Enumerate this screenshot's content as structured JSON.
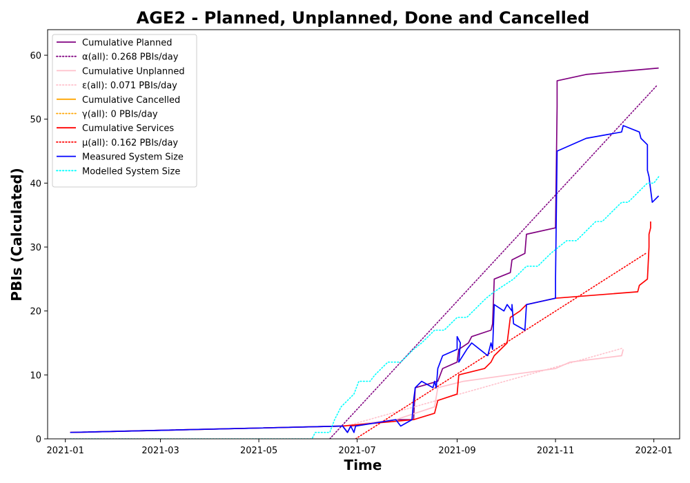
{
  "chart_data": {
    "type": "line",
    "title": "AGE2 - Planned, Unplanned, Done  and Cancelled",
    "xlabel": "Time",
    "ylabel": "PBIs (Calculated)",
    "x_type": "date",
    "xlim": [
      "2020-12-21",
      "2022-01-17"
    ],
    "ylim": [
      0,
      64
    ],
    "x_ticks": [
      "2021-01",
      "2021-03",
      "2021-05",
      "2021-07",
      "2021-09",
      "2021-11",
      "2022-01"
    ],
    "y_ticks": [
      0,
      10,
      20,
      30,
      40,
      50,
      60
    ],
    "grid": false,
    "legend_position": "top-left",
    "colors": {
      "planned": "#800080",
      "unplanned": "#ffc0cb",
      "cancelled": "#ffa500",
      "services": "#ff0000",
      "measured": "#0000ff",
      "modelled": "#00ffff"
    },
    "series": [
      {
        "name": "Cumulative Planned",
        "color": "#800080",
        "style": "solid",
        "points": [
          [
            "2021-01-04",
            1
          ],
          [
            "2021-06-22",
            2
          ],
          [
            "2021-06-25",
            1
          ],
          [
            "2021-06-27",
            2
          ],
          [
            "2021-07-25",
            3
          ],
          [
            "2021-08-05",
            3
          ],
          [
            "2021-08-06",
            8
          ],
          [
            "2021-08-20",
            9
          ],
          [
            "2021-08-23",
            11
          ],
          [
            "2021-09-01",
            12
          ],
          [
            "2021-09-02",
            14
          ],
          [
            "2021-09-08",
            15
          ],
          [
            "2021-09-10",
            16
          ],
          [
            "2021-09-22",
            17
          ],
          [
            "2021-09-23",
            18
          ],
          [
            "2021-09-24",
            25
          ],
          [
            "2021-10-04",
            26
          ],
          [
            "2021-10-05",
            28
          ],
          [
            "2021-10-13",
            29
          ],
          [
            "2021-10-14",
            32
          ],
          [
            "2021-11-01",
            33
          ],
          [
            "2021-11-02",
            52
          ],
          [
            "2021-11-02",
            56
          ],
          [
            "2021-11-20",
            57
          ],
          [
            "2022-01-04",
            58
          ]
        ]
      },
      {
        "name": "α(all): 0.268 PBIs/day",
        "color": "#800080",
        "style": "dotted",
        "points": [
          [
            "2021-06-14",
            0
          ],
          [
            "2022-01-03",
            55.3
          ]
        ]
      },
      {
        "name": "Cumulative Unplanned",
        "color": "#ffc0cb",
        "style": "solid",
        "points": [
          [
            "2021-01-04",
            1
          ],
          [
            "2021-06-22",
            2
          ],
          [
            "2021-07-25",
            3
          ],
          [
            "2021-08-18",
            5
          ],
          [
            "2021-08-20",
            8
          ],
          [
            "2021-09-05",
            9
          ],
          [
            "2021-11-01",
            11
          ],
          [
            "2021-11-10",
            12
          ],
          [
            "2021-12-12",
            13
          ],
          [
            "2021-12-13",
            14
          ]
        ]
      },
      {
        "name": "ε(all): 0.071 PBIs/day",
        "color": "#ffc0cb",
        "style": "dotted",
        "points": [
          [
            "2021-06-24",
            2
          ],
          [
            "2021-12-13",
            14.2
          ]
        ]
      },
      {
        "name": "Cumulative Cancelled",
        "color": "#ffa500",
        "style": "solid",
        "points": []
      },
      {
        "name": "γ(all): 0 PBIs/day",
        "color": "#ffa500",
        "style": "dotted",
        "points": []
      },
      {
        "name": "Cumulative Services",
        "color": "#ff0000",
        "style": "solid",
        "points": [
          [
            "2021-01-04",
            1
          ],
          [
            "2021-06-22",
            2
          ],
          [
            "2021-08-05",
            3
          ],
          [
            "2021-08-18",
            4
          ],
          [
            "2021-08-20",
            6
          ],
          [
            "2021-09-01",
            7
          ],
          [
            "2021-09-02",
            10
          ],
          [
            "2021-09-18",
            11
          ],
          [
            "2021-09-22",
            12
          ],
          [
            "2021-09-24",
            13
          ],
          [
            "2021-10-02",
            15
          ],
          [
            "2021-10-04",
            19
          ],
          [
            "2021-10-10",
            20
          ],
          [
            "2021-10-14",
            21
          ],
          [
            "2021-11-01",
            22
          ],
          [
            "2021-12-22",
            23
          ],
          [
            "2021-12-23",
            24
          ],
          [
            "2021-12-28",
            25
          ],
          [
            "2021-12-29",
            30
          ],
          [
            "2021-12-29",
            32
          ],
          [
            "2021-12-30",
            33
          ],
          [
            "2021-12-30",
            34
          ]
        ]
      },
      {
        "name": "μ(all): 0.162 PBIs/day",
        "color": "#ff0000",
        "style": "dotted",
        "points": [
          [
            "2021-06-30",
            0
          ],
          [
            "2021-12-27",
            29
          ]
        ]
      },
      {
        "name": "Measured System Size",
        "color": "#0000ff",
        "style": "solid",
        "points": [
          [
            "2021-01-04",
            1
          ],
          [
            "2021-06-22",
            2
          ],
          [
            "2021-06-25",
            1
          ],
          [
            "2021-06-27",
            2
          ],
          [
            "2021-06-29",
            1
          ],
          [
            "2021-06-30",
            2
          ],
          [
            "2021-07-25",
            3
          ],
          [
            "2021-07-28",
            2
          ],
          [
            "2021-08-04",
            3
          ],
          [
            "2021-08-05",
            6
          ],
          [
            "2021-08-06",
            8
          ],
          [
            "2021-08-10",
            9
          ],
          [
            "2021-08-17",
            8
          ],
          [
            "2021-08-18",
            9
          ],
          [
            "2021-08-19",
            8
          ],
          [
            "2021-08-20",
            11
          ],
          [
            "2021-08-23",
            13
          ],
          [
            "2021-09-01",
            14
          ],
          [
            "2021-09-01",
            16
          ],
          [
            "2021-09-03",
            15
          ],
          [
            "2021-09-02",
            12
          ],
          [
            "2021-09-07",
            14
          ],
          [
            "2021-09-10",
            15
          ],
          [
            "2021-09-20",
            13
          ],
          [
            "2021-09-22",
            15
          ],
          [
            "2021-09-23",
            14
          ],
          [
            "2021-09-24",
            21
          ],
          [
            "2021-09-30",
            20
          ],
          [
            "2021-10-02",
            21
          ],
          [
            "2021-10-05",
            20
          ],
          [
            "2021-10-05",
            21
          ],
          [
            "2021-10-06",
            18
          ],
          [
            "2021-10-13",
            17
          ],
          [
            "2021-10-14",
            21
          ],
          [
            "2021-11-01",
            22
          ],
          [
            "2021-11-01",
            25
          ],
          [
            "2021-11-02",
            45
          ],
          [
            "2021-11-20",
            47
          ],
          [
            "2021-12-12",
            48
          ],
          [
            "2021-12-13",
            49
          ],
          [
            "2021-12-23",
            48
          ],
          [
            "2021-12-24",
            47
          ],
          [
            "2021-12-28",
            46
          ],
          [
            "2021-12-28",
            42
          ],
          [
            "2021-12-29",
            41
          ],
          [
            "2021-12-30",
            39
          ],
          [
            "2021-12-31",
            37
          ],
          [
            "2022-01-04",
            38
          ]
        ]
      },
      {
        "name": "Modelled System Size",
        "color": "#00ffff",
        "style": "dotted",
        "points": [
          [
            "2021-01-04",
            0
          ],
          [
            "2021-06-03",
            0
          ],
          [
            "2021-06-05",
            1
          ],
          [
            "2021-06-14",
            1
          ],
          [
            "2021-06-17",
            3
          ],
          [
            "2021-06-21",
            5
          ],
          [
            "2021-06-25",
            6
          ],
          [
            "2021-06-29",
            7
          ],
          [
            "2021-07-02",
            9
          ],
          [
            "2021-07-09",
            9
          ],
          [
            "2021-07-12",
            10
          ],
          [
            "2021-07-16",
            11
          ],
          [
            "2021-07-20",
            12
          ],
          [
            "2021-07-28",
            12
          ],
          [
            "2021-08-01",
            13
          ],
          [
            "2021-08-05",
            14
          ],
          [
            "2021-08-10",
            15
          ],
          [
            "2021-08-14",
            16
          ],
          [
            "2021-08-18",
            17
          ],
          [
            "2021-08-24",
            17
          ],
          [
            "2021-08-28",
            18
          ],
          [
            "2021-09-01",
            19
          ],
          [
            "2021-09-07",
            19
          ],
          [
            "2021-09-11",
            20
          ],
          [
            "2021-09-15",
            21
          ],
          [
            "2021-09-19",
            22
          ],
          [
            "2021-09-24",
            23
          ],
          [
            "2021-09-30",
            24
          ],
          [
            "2021-10-06",
            25
          ],
          [
            "2021-10-10",
            26
          ],
          [
            "2021-10-14",
            27
          ],
          [
            "2021-10-21",
            27
          ],
          [
            "2021-10-25",
            28
          ],
          [
            "2021-10-29",
            29
          ],
          [
            "2021-11-03",
            30
          ],
          [
            "2021-11-08",
            31
          ],
          [
            "2021-11-14",
            31
          ],
          [
            "2021-11-18",
            32
          ],
          [
            "2021-11-22",
            33
          ],
          [
            "2021-11-26",
            34
          ],
          [
            "2021-11-30",
            34
          ],
          [
            "2021-12-04",
            35
          ],
          [
            "2021-12-08",
            36
          ],
          [
            "2021-12-12",
            37
          ],
          [
            "2021-12-16",
            37
          ],
          [
            "2021-12-20",
            38
          ],
          [
            "2021-12-24",
            39
          ],
          [
            "2021-12-28",
            40
          ],
          [
            "2022-01-01",
            40
          ],
          [
            "2022-01-04",
            41
          ]
        ]
      }
    ]
  }
}
